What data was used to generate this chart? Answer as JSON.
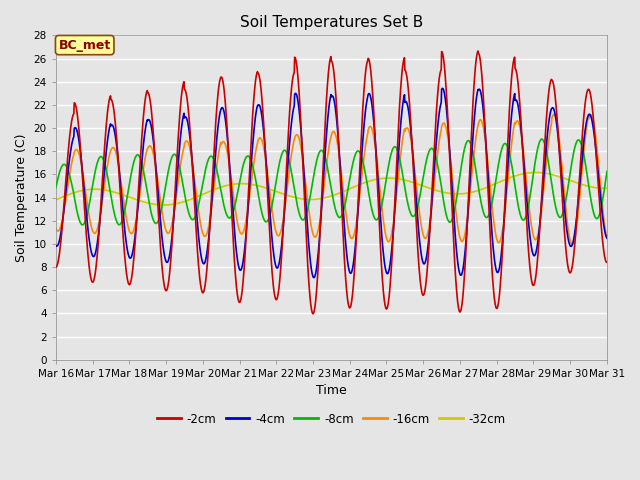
{
  "title": "Soil Temperatures Set B",
  "xlabel": "Time",
  "ylabel": "Soil Temperature (C)",
  "annotation": "BC_met",
  "ylim": [
    0,
    28
  ],
  "yticks": [
    0,
    2,
    4,
    6,
    8,
    10,
    12,
    14,
    16,
    18,
    20,
    22,
    24,
    26,
    28
  ],
  "x_labels": [
    "Mar 16",
    "Mar 17",
    "Mar 18",
    "Mar 19",
    "Mar 20",
    "Mar 21",
    "Mar 22",
    "Mar 23",
    "Mar 24",
    "Mar 25",
    "Mar 26",
    "Mar 27",
    "Mar 28",
    "Mar 29",
    "Mar 30",
    "Mar 31"
  ],
  "series_colors": [
    "#cc0000",
    "#0000cc",
    "#00bb00",
    "#ff8800",
    "#cccc00"
  ],
  "series_keys": [
    "-2cm",
    "-4cm",
    "-8cm",
    "-16cm",
    "-32cm"
  ],
  "linewidth": 1.2,
  "bg_color": "#e5e5e5",
  "plot_bg_color": "#e5e5e5",
  "grid_color": "#ffffff",
  "annotation_bg": "#ffff99",
  "annotation_border": "#8b4513",
  "annotation_text_color": "#8b0000",
  "title_fontsize": 11,
  "axis_label_fontsize": 9,
  "tick_fontsize": 7.5,
  "legend_fontsize": 8.5
}
